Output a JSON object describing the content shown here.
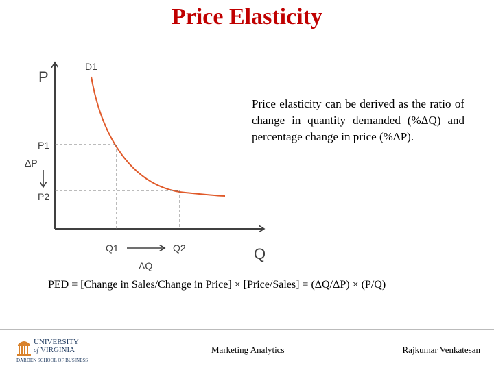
{
  "slide": {
    "title": "Price Elasticity",
    "description": "Price elasticity can be derived as the ratio of change in quantity demanded (%ΔQ) and percentage change in price (%ΔP).",
    "formula": "PED = [Change in Sales/Change in Price] × [Price/Sales] = (ΔQ/ΔP) × (P/Q)"
  },
  "diagram": {
    "price_axis": "P",
    "quantity_axis": "Q",
    "curve_label": "D1",
    "p1": "P1",
    "p2": "P2",
    "delta_p": "ΔP",
    "q1": "Q1",
    "q2": "Q2",
    "delta_q": "ΔQ"
  },
  "footer": {
    "logo_text": {
      "university": "UNIVERSITY",
      "of": "of",
      "virginia": "VIRGINIA",
      "school": "DARDEN SCHOOL OF BUSINESS"
    },
    "center": "Marketing Analytics",
    "right": "Rajkumar Venkatesan"
  },
  "colors": {
    "title": "#c00000",
    "curve": "#e05a2a",
    "logo_orange": "#d9822b",
    "logo_navy": "#1f3a5f"
  }
}
